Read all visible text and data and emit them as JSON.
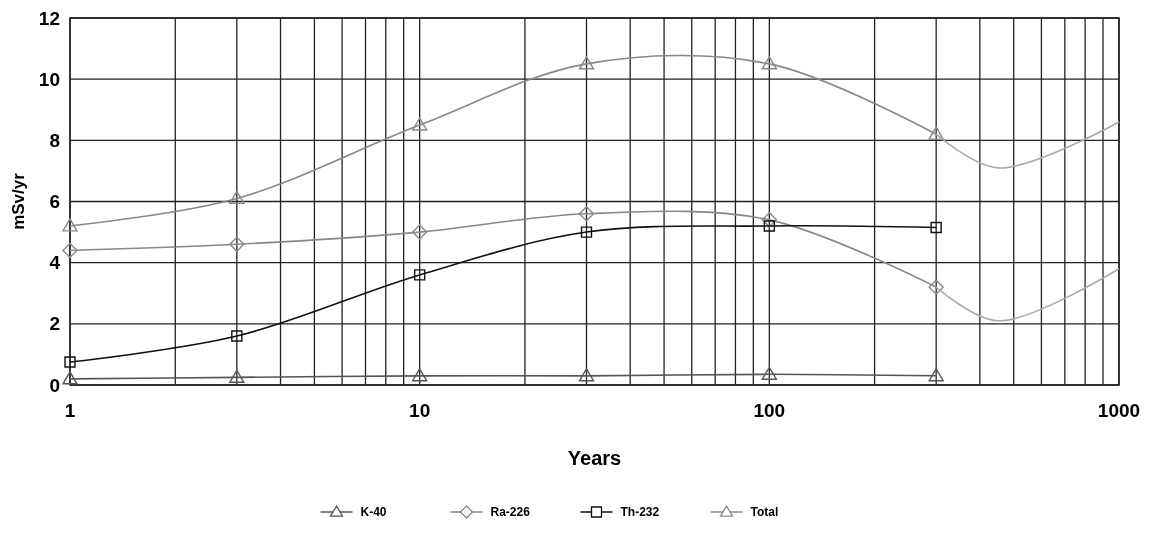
{
  "chart_data": {
    "type": "line",
    "xlabel": "Years",
    "ylabel": "mSv/yr",
    "xlim": [
      1,
      1000
    ],
    "xticks": [
      1,
      10,
      100,
      1000
    ],
    "ylim": [
      0,
      12
    ],
    "yticks": [
      0,
      2,
      4,
      6,
      8,
      10,
      12
    ],
    "log": "x",
    "grid": true,
    "legend": "bottom",
    "series": [
      {
        "name": "K-40",
        "color": "#555555",
        "marker": "triangle",
        "x": [
          1,
          3,
          10,
          30,
          100,
          300
        ],
        "values": [
          0.2,
          0.25,
          0.3,
          0.3,
          0.35,
          0.3
        ]
      },
      {
        "name": "Ra-226",
        "color": "#888888",
        "marker": "diamond",
        "x": [
          1,
          3,
          10,
          30,
          100,
          300
        ],
        "values": [
          4.4,
          4.6,
          5.0,
          5.6,
          5.4,
          3.2
        ]
      },
      {
        "name": "Th-232",
        "color": "#111111",
        "marker": "square",
        "x": [
          1,
          3,
          10,
          30,
          100,
          300
        ],
        "values": [
          0.75,
          1.6,
          3.6,
          5.0,
          5.2,
          5.15
        ]
      },
      {
        "name": "Total",
        "color": "#888888",
        "marker": "triangle",
        "x": [
          1,
          3,
          10,
          30,
          100,
          300
        ],
        "values": [
          5.2,
          6.1,
          8.5,
          10.5,
          10.5,
          8.2
        ]
      },
      {
        "color": "#aaaaaa",
        "marker": "none",
        "x": [
          300,
          450,
          1000
        ],
        "values": [
          3.2,
          2.1,
          3.8
        ]
      },
      {
        "color": "#aaaaaa",
        "marker": "none",
        "x": [
          300,
          450,
          1000
        ],
        "values": [
          8.2,
          7.1,
          8.6
        ]
      }
    ]
  }
}
